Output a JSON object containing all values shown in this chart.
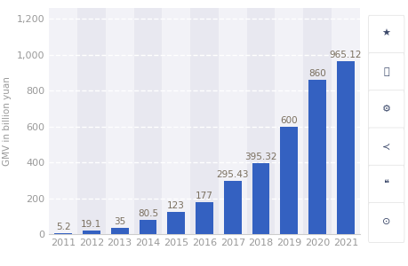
{
  "years": [
    "2011",
    "2012",
    "2013",
    "2014",
    "2015",
    "2016",
    "2017",
    "2018",
    "2019",
    "2020",
    "2021"
  ],
  "values": [
    5.2,
    19.1,
    35,
    80.5,
    123,
    177,
    295.43,
    395.32,
    600,
    860,
    965.12
  ],
  "labels": [
    "5.2",
    "19.1",
    "35",
    "80.5",
    "123",
    "177",
    "295.43",
    "395.32",
    "600",
    "860",
    "965.12"
  ],
  "bar_color": "#3461C1",
  "ylabel": "GMV in billion yuan",
  "ylim": [
    0,
    1260
  ],
  "yticks": [
    0,
    200,
    400,
    600,
    800,
    1000,
    1200
  ],
  "background_color": "#ffffff",
  "plot_bg_color": "#f2f2f7",
  "col_band_light": "#f2f2f7",
  "col_band_dark": "#e8e8f0",
  "grid_color": "#ffffff",
  "label_color": "#7a6f5e",
  "label_fontsize": 7.5,
  "tick_fontsize": 8,
  "ylabel_fontsize": 7.5,
  "tick_color": "#999999"
}
